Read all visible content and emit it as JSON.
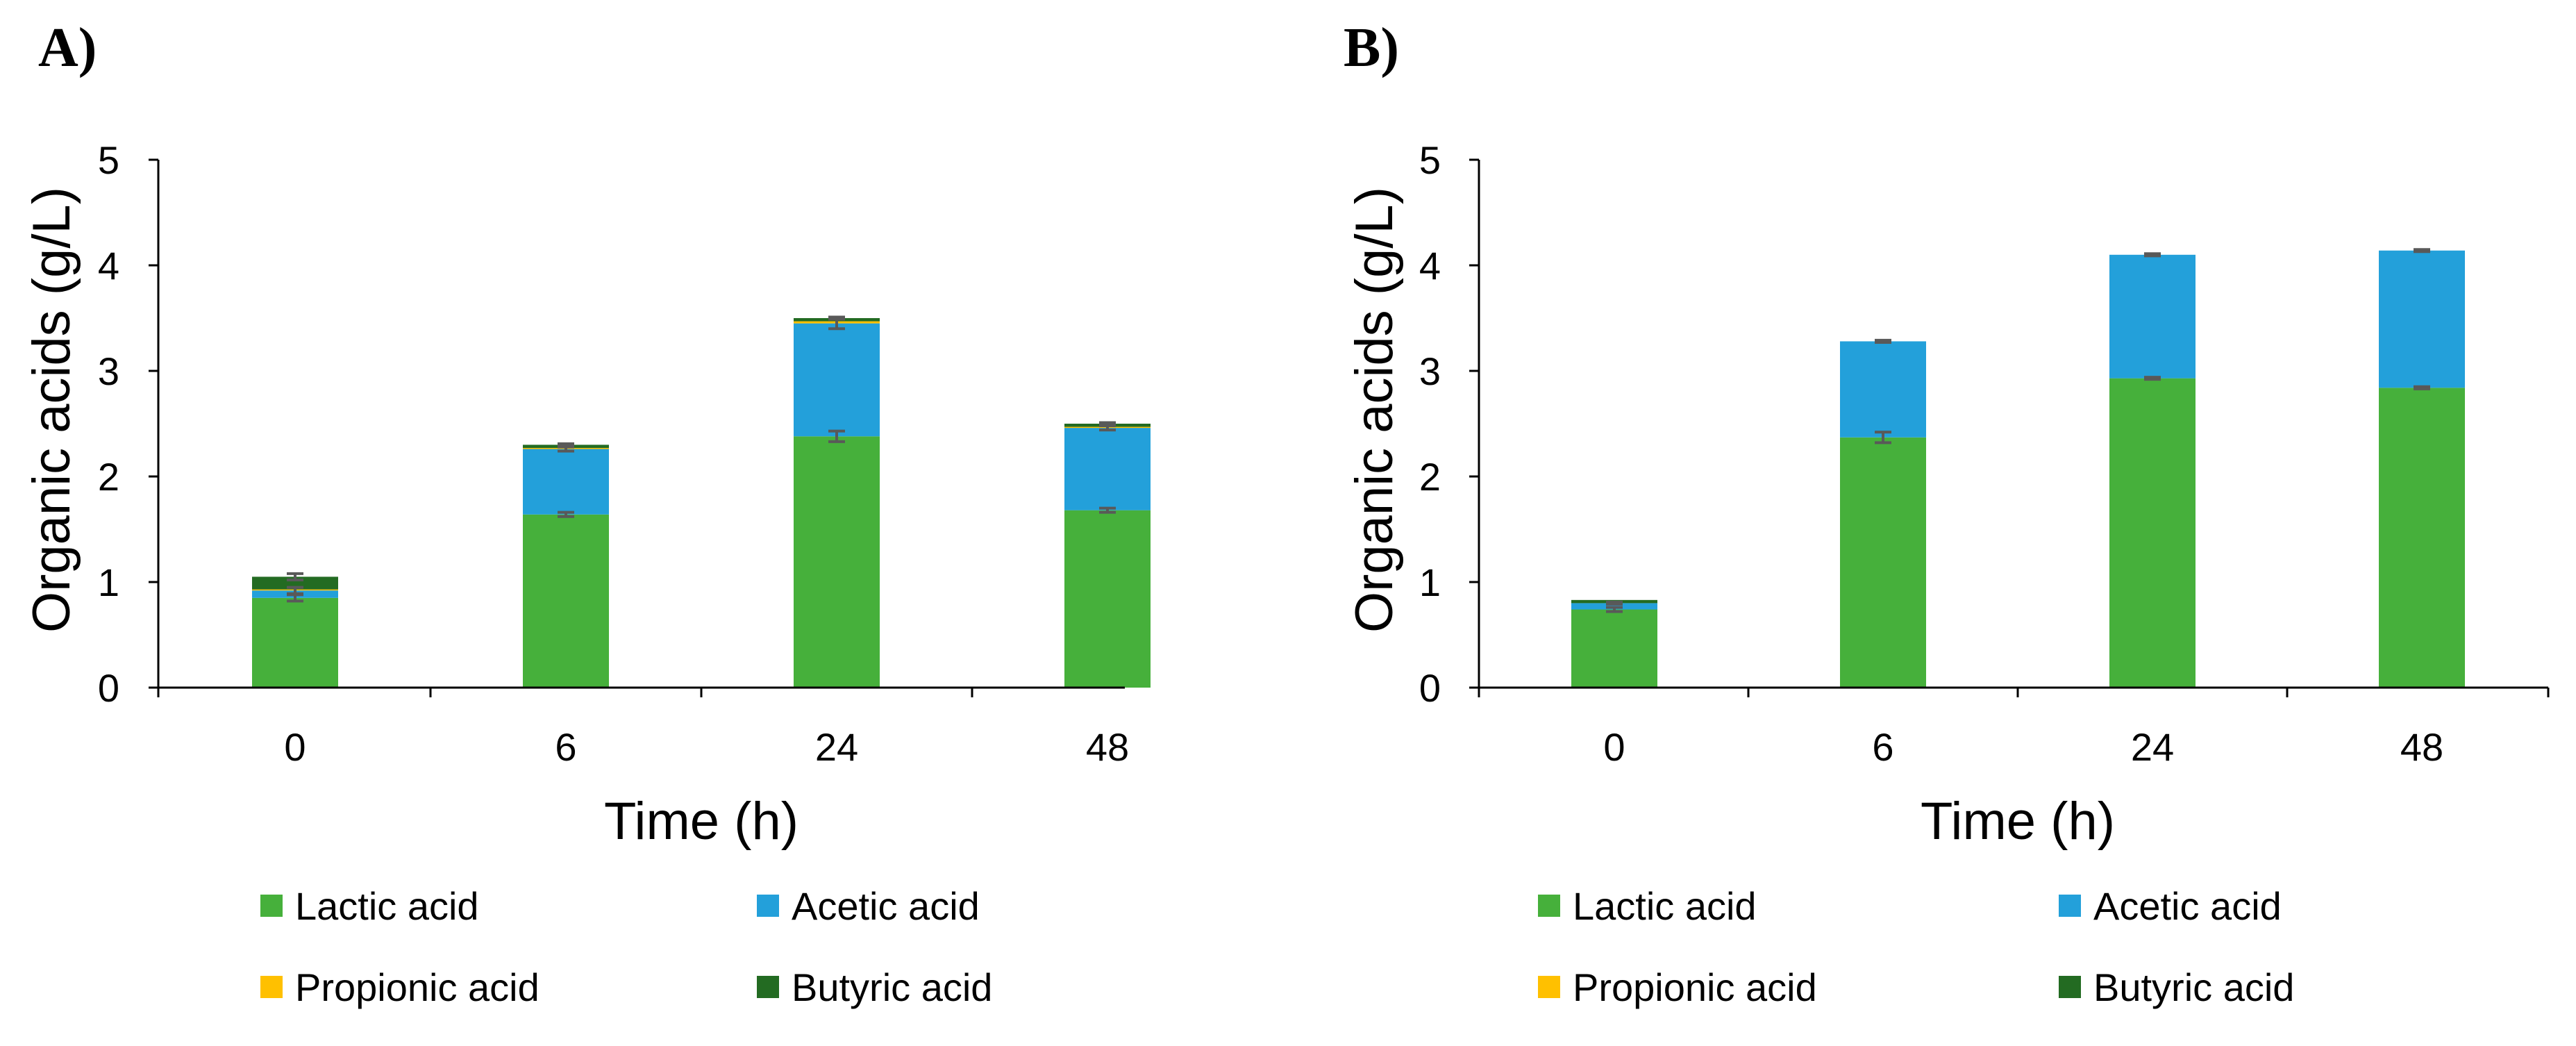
{
  "colors": {
    "Lactic acid": "#46b03b",
    "Acetic acid": "#23a0da",
    "Propionic acid": "#ffc000",
    "Butyric acid": "#236b22",
    "error_bar": "#595959"
  },
  "chart_data": [
    {
      "type": "bar",
      "stacked": true,
      "panel_label": "A)",
      "title": "",
      "xlabel": "Time (h)",
      "ylabel": "Organic acids (g/L)",
      "ylim": [
        0,
        5
      ],
      "yticks": [
        "0",
        "1",
        "2",
        "3",
        "4",
        "5"
      ],
      "categories": [
        "0",
        "6",
        "24",
        "48"
      ],
      "legend_position": "bottom",
      "series": [
        {
          "name": "Lactic acid",
          "values": [
            0.85,
            1.64,
            2.38,
            1.68
          ],
          "errors": [
            0.03,
            0.02,
            0.05,
            0.02
          ]
        },
        {
          "name": "Acetic acid",
          "values": [
            0.07,
            0.62,
            1.07,
            0.78
          ],
          "errors": [
            0.03,
            0.02,
            0.05,
            0.02
          ]
        },
        {
          "name": "Propionic acid",
          "values": [
            0.01,
            0.01,
            0.02,
            0.01
          ],
          "errors": [
            0,
            0,
            0,
            0
          ]
        },
        {
          "name": "Butyric acid",
          "values": [
            0.12,
            0.03,
            0.03,
            0.03
          ],
          "errors": [
            0.03,
            0.01,
            0.01,
            0.01
          ]
        }
      ]
    },
    {
      "type": "bar",
      "stacked": true,
      "panel_label": "B)",
      "title": "",
      "xlabel": "Time (h)",
      "ylabel": "Organic acids (g/L)",
      "ylim": [
        0,
        5
      ],
      "yticks": [
        "0",
        "1",
        "2",
        "3",
        "4",
        "5"
      ],
      "categories": [
        "0",
        "6",
        "24",
        "48"
      ],
      "legend_position": "bottom",
      "series": [
        {
          "name": "Lactic acid",
          "values": [
            0.74,
            2.37,
            2.93,
            2.84
          ],
          "errors": [
            0.02,
            0.05,
            0.01,
            0.01
          ]
        },
        {
          "name": "Acetic acid",
          "values": [
            0.06,
            0.91,
            1.17,
            1.3
          ],
          "errors": [
            0.01,
            0.01,
            0.01,
            0.01
          ]
        },
        {
          "name": "Propionic acid",
          "values": [
            0.0,
            0.0,
            0.0,
            0.0
          ],
          "errors": [
            0,
            0,
            0,
            0
          ]
        },
        {
          "name": "Butyric acid",
          "values": [
            0.03,
            0.0,
            0.0,
            0.0
          ],
          "errors": [
            0,
            0,
            0,
            0
          ]
        }
      ]
    }
  ]
}
